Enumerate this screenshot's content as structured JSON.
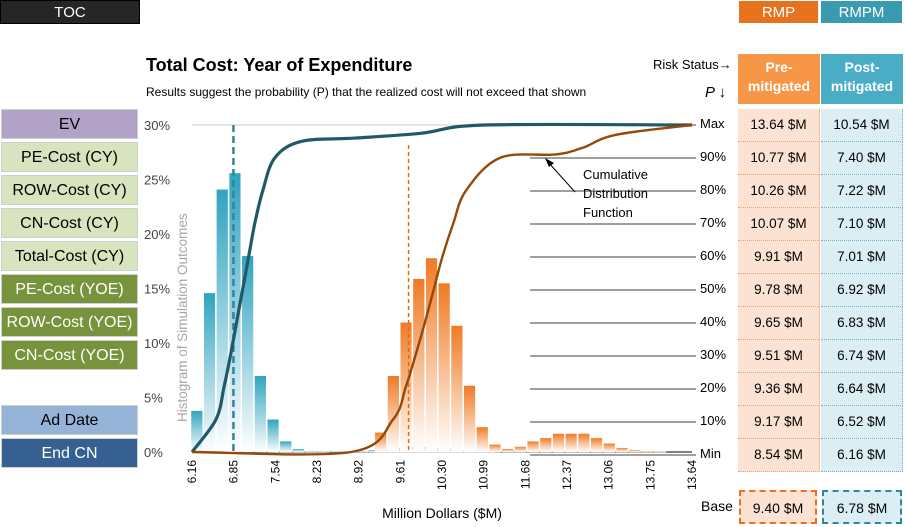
{
  "toc_label": "TOC",
  "tabs": [
    {
      "label": "RMP",
      "color": "#e8711e"
    },
    {
      "label": "RMPM",
      "color": "#3a9bb0"
    }
  ],
  "sidebar": [
    {
      "label": "EV",
      "bg": "#b3a2c7",
      "fg": "#000000"
    },
    {
      "label": "PE-Cost (CY)",
      "bg": "#d7e4bd",
      "fg": "#000000"
    },
    {
      "label": "ROW-Cost (CY)",
      "bg": "#d7e4bd",
      "fg": "#000000"
    },
    {
      "label": "CN-Cost (CY)",
      "bg": "#d7e4bd",
      "fg": "#000000"
    },
    {
      "label": "Total-Cost (CY)",
      "bg": "#d7e4bd",
      "fg": "#000000"
    },
    {
      "label": "PE-Cost (YOE)",
      "bg": "#77933c",
      "fg": "#ffffff"
    },
    {
      "label": "ROW-Cost (YOE)",
      "bg": "#77933c",
      "fg": "#ffffff"
    },
    {
      "label": "CN-Cost (YOE)",
      "bg": "#77933c",
      "fg": "#ffffff"
    },
    {
      "label": "Ad Date",
      "bg": "#95b3d7",
      "fg": "#000000"
    },
    {
      "label": "End CN",
      "bg": "#366092",
      "fg": "#ffffff"
    }
  ],
  "title": "Total Cost:  Year of Expenditure",
  "subtitle": "Results suggest the probability (P) that the realized cost will not exceed that shown",
  "risk_status": "Risk Status→",
  "p_header": "P ↓",
  "columns": {
    "rmp": {
      "line1": "Pre-",
      "line2": "mitigated",
      "color": "#f79646"
    },
    "rmpm": {
      "line1": "Post-",
      "line2": "mitigated",
      "color": "#4bacc6"
    }
  },
  "table": [
    {
      "p": "Max",
      "rmp": "13.64 $M",
      "rmpm": "10.54 $M"
    },
    {
      "p": "90%",
      "rmp": "10.77 $M",
      "rmpm": "7.40 $M"
    },
    {
      "p": "80%",
      "rmp": "10.26 $M",
      "rmpm": "7.22 $M"
    },
    {
      "p": "70%",
      "rmp": "10.07 $M",
      "rmpm": "7.10 $M"
    },
    {
      "p": "60%",
      "rmp": "9.91 $M",
      "rmpm": "7.01 $M"
    },
    {
      "p": "50%",
      "rmp": "9.78 $M",
      "rmpm": "6.92 $M"
    },
    {
      "p": "40%",
      "rmp": "9.65 $M",
      "rmpm": "6.83 $M"
    },
    {
      "p": "30%",
      "rmp": "9.51 $M",
      "rmpm": "6.74 $M"
    },
    {
      "p": "20%",
      "rmp": "9.36 $M",
      "rmpm": "6.64 $M"
    },
    {
      "p": "10%",
      "rmp": "9.17 $M",
      "rmpm": "6.52 $M"
    },
    {
      "p": "Min",
      "rmp": "8.54 $M",
      "rmpm": "6.16 $M"
    }
  ],
  "base": {
    "label": "Base",
    "rmp": "9.40 $M",
    "rmpm": "6.78 $M"
  },
  "chart_data": {
    "type": "bar",
    "xlabel": "Million Dollars ($M)",
    "ylabel": "Histogram of Simulation Outcomes",
    "xlim": [
      6.16,
      13.64
    ],
    "ylim": [
      0,
      30
    ],
    "x_ticks": [
      "6.16",
      "6.85",
      "7.54",
      "8.23",
      "8.92",
      "9.61",
      "10.30",
      "10.99",
      "11.68",
      "12.37",
      "13.06",
      "13.75",
      "13.64"
    ],
    "y_ticks": [
      "0%",
      "5%",
      "10%",
      "15%",
      "20%",
      "25%",
      "30%"
    ],
    "annotation": [
      "Cumulative",
      "Distribution",
      "Function"
    ],
    "bin_width": 0.19,
    "series": [
      {
        "name": "Post-mitigated (RMPM)",
        "color": "#4bacc6",
        "bins": [
          6.24,
          6.43,
          6.62,
          6.81,
          7.0,
          7.19,
          7.38,
          7.57,
          7.76,
          7.95,
          8.14,
          8.33,
          8.52,
          8.71,
          8.9,
          9.09,
          9.28,
          9.47,
          9.66,
          9.85,
          10.04,
          10.23,
          10.42,
          10.61
        ],
        "values": [
          3.8,
          14.6,
          24.1,
          25.6,
          18.0,
          7.0,
          3.0,
          1.0,
          0.3,
          0.1,
          0.1,
          0.1,
          0.1,
          0.1,
          0.2,
          0.3,
          0.4,
          0.5,
          0.5,
          0.4,
          0.3,
          0.2,
          0.1,
          0.1
        ],
        "base_line_x": 6.78
      },
      {
        "name": "Pre-mitigated (RMP)",
        "color": "#f79646",
        "bins": [
          8.99,
          9.18,
          9.37,
          9.56,
          9.75,
          9.94,
          10.13,
          10.32,
          10.51,
          10.7,
          10.89,
          11.08,
          11.27,
          11.46,
          11.65,
          11.84,
          12.03,
          12.22,
          12.41,
          12.6,
          12.79,
          12.98,
          13.17
        ],
        "values": [
          1.8,
          7.0,
          11.9,
          15.9,
          17.8,
          15.5,
          11.6,
          6.1,
          2.3,
          0.7,
          0.3,
          0.5,
          1.0,
          1.3,
          1.7,
          1.7,
          1.7,
          1.3,
          0.8,
          0.4,
          0.2,
          0.1,
          0.1
        ],
        "base_line_x": 9.4
      }
    ],
    "cdf": [
      {
        "name": "Post-mitigated CDF",
        "color": "#215968",
        "points": [
          [
            6.16,
            0
          ],
          [
            6.52,
            10
          ],
          [
            6.64,
            20
          ],
          [
            6.74,
            30
          ],
          [
            6.83,
            40
          ],
          [
            6.92,
            50
          ],
          [
            7.01,
            60
          ],
          [
            7.1,
            70
          ],
          [
            7.22,
            80
          ],
          [
            7.4,
            90
          ],
          [
            7.8,
            95
          ],
          [
            8.6,
            96
          ],
          [
            9.6,
            97.5
          ],
          [
            10.54,
            100
          ],
          [
            13.64,
            100
          ]
        ]
      },
      {
        "name": "Pre-mitigated CDF",
        "color": "#974806",
        "points": [
          [
            6.16,
            0
          ],
          [
            8.54,
            0
          ],
          [
            9.17,
            10
          ],
          [
            9.36,
            20
          ],
          [
            9.51,
            30
          ],
          [
            9.65,
            40
          ],
          [
            9.78,
            50
          ],
          [
            9.91,
            60
          ],
          [
            10.07,
            70
          ],
          [
            10.26,
            80
          ],
          [
            10.77,
            90
          ],
          [
            11.6,
            91
          ],
          [
            12.0,
            93
          ],
          [
            12.5,
            97
          ],
          [
            13.64,
            100
          ]
        ]
      }
    ]
  }
}
